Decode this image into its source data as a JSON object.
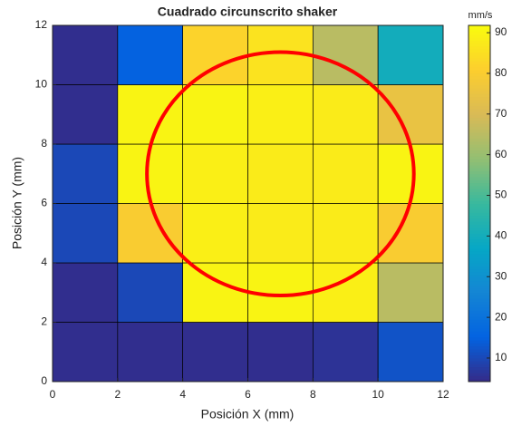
{
  "chart_data": {
    "type": "heatmap",
    "title": "Cuadrado circunscrito shaker",
    "xlabel": "Posición X (mm)",
    "ylabel": "Posición Y (mm)",
    "colorbar_label": "mm/s",
    "colormap": "parula",
    "xlim": [
      0,
      12
    ],
    "ylim": [
      0,
      12
    ],
    "xticks": [
      0,
      2,
      4,
      6,
      8,
      10,
      12
    ],
    "yticks": [
      0,
      2,
      4,
      6,
      8,
      10,
      12
    ],
    "values": [
      [
        5,
        5,
        5,
        5,
        6,
        12
      ],
      [
        5,
        10,
        90,
        90,
        89,
        65
      ],
      [
        10,
        80,
        89,
        88,
        88,
        80
      ],
      [
        10,
        90,
        89,
        88,
        88,
        90
      ],
      [
        5,
        90,
        90,
        89,
        88,
        75
      ],
      [
        5,
        15,
        82,
        86,
        65,
        40
      ]
    ],
    "clim": [
      4.2,
      91.8
    ],
    "cticks": [
      10,
      20,
      30,
      40,
      50,
      60,
      70,
      80,
      90
    ],
    "annotations": [
      {
        "type": "circle",
        "cx": 7,
        "cy": 7,
        "r": 4.1,
        "color": "#ff0000"
      }
    ]
  }
}
